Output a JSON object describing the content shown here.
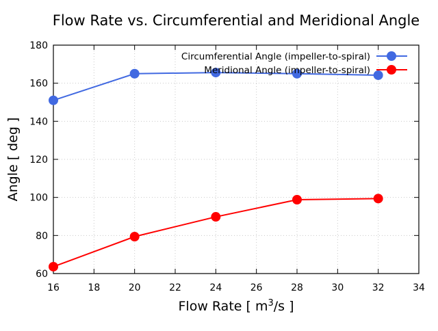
{
  "chart_data": {
    "type": "line",
    "title": "Flow Rate vs. Circumferential and Meridional Angle",
    "xlabel": "Flow Rate [ m³/s ]",
    "xlabel_parts": {
      "pre": "Flow Rate [ m",
      "sup": "3",
      "post": "/s ]"
    },
    "ylabel": "Angle [ deg ]",
    "xlim": [
      16,
      34
    ],
    "ylim": [
      60,
      180
    ],
    "xticks": [
      16,
      18,
      20,
      22,
      24,
      26,
      28,
      30,
      32,
      34
    ],
    "yticks": [
      60,
      80,
      100,
      120,
      140,
      160,
      180
    ],
    "grid": true,
    "legend_position": "top-right",
    "x": [
      16,
      20,
      24,
      28,
      32
    ],
    "series": [
      {
        "name": "Circumferential Angle (impeller-to-spiral)",
        "color": "#4169e1",
        "values": [
          151,
          165,
          165.6,
          165,
          164.2
        ]
      },
      {
        "name": "Meridional Angle (impeller-to-spiral)",
        "color": "#ff0000",
        "values": [
          63.6,
          79.4,
          89.8,
          98.8,
          99.4
        ]
      }
    ]
  }
}
